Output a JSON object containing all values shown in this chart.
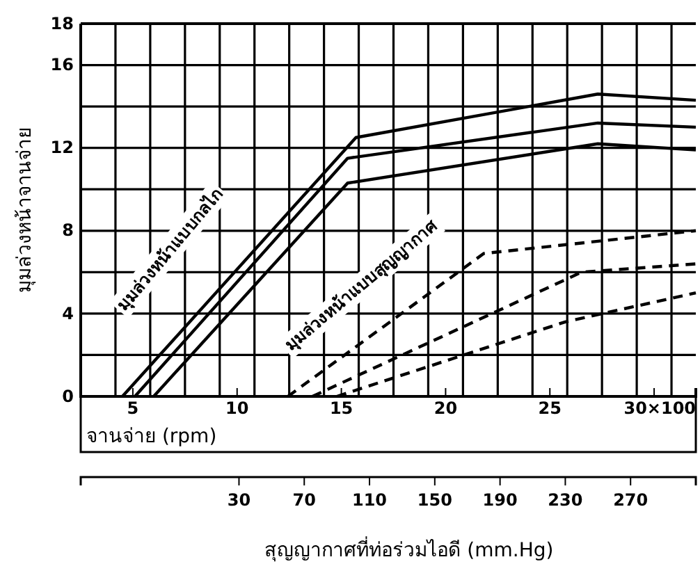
{
  "chart_data": {
    "type": "line",
    "ylabel": "มุมล่วงหน้าจานจ่าย",
    "xlabel": "จานจ่าย (rpm)",
    "x2label": "สุญญากาศที่ท่อร่วมไอดี (mm.Hg)",
    "xlim": [
      2.5,
      32
    ],
    "xticks": [
      5,
      10,
      15,
      20,
      25,
      {
        "value": 30,
        "label": "30×100"
      }
    ],
    "x2lim": [
      -67,
      310
    ],
    "x2ticks": [
      30,
      70,
      110,
      150,
      190,
      230,
      270
    ],
    "ylim": [
      0,
      18
    ],
    "yticks": [
      0,
      {
        "value": 2,
        "label": null
      },
      4,
      {
        "value": 6,
        "label": null
      },
      8,
      {
        "value": 10,
        "label": null
      },
      12,
      {
        "value": 14,
        "label": null
      },
      16,
      18
    ],
    "grid": true,
    "marker": "none",
    "series": [
      {
        "color": "#000000",
        "line_style": "solid",
        "x": [
          4.5,
          15.7,
          27.3,
          32
        ],
        "values": [
          0,
          12.5,
          14.6,
          14.3
        ]
      },
      {
        "color": "#000000",
        "line_style": "solid",
        "x": [
          5.1,
          15.3,
          27.3,
          32
        ],
        "values": [
          0,
          11.5,
          13.2,
          13.0
        ]
      },
      {
        "color": "#000000",
        "line_style": "solid",
        "x": [
          6,
          15.3,
          27.3,
          32
        ],
        "values": [
          0,
          10.3,
          12.2,
          11.9
        ]
      },
      {
        "color": "#000000",
        "line_style": "dashed",
        "axis": "x2",
        "x": [
          60,
          180,
          310
        ],
        "values": [
          0,
          6.9,
          8.0
        ]
      },
      {
        "color": "#000000",
        "line_style": "dashed",
        "axis": "x2",
        "x": [
          75,
          240,
          310
        ],
        "values": [
          0,
          6.0,
          6.4
        ]
      },
      {
        "color": "#000000",
        "line_style": "dashed",
        "axis": "x2",
        "x": [
          90,
          230,
          310
        ],
        "values": [
          0,
          3.6,
          5.0
        ]
      }
    ],
    "annotations": [
      "มุมล่วงหน้าแบบกลไก",
      "มุมล่วงหน้าแบบสุญญากาศ"
    ]
  }
}
